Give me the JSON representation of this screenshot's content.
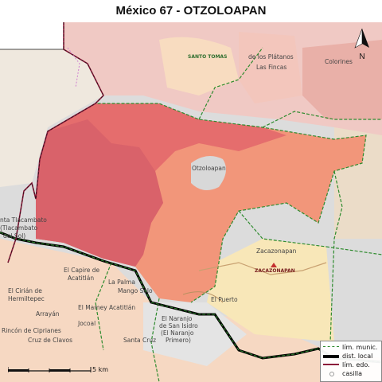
{
  "title": "México 67 - OTZOLOAPAN",
  "map": {
    "places": [
      {
        "id": "santo-tomas",
        "text": "SANTO TOMAS",
        "style": "g"
      },
      {
        "id": "los-platanos",
        "text": "de los Plátanos",
        "style": "n"
      },
      {
        "id": "las-fincas",
        "text": "Las Fincas",
        "style": "n"
      },
      {
        "id": "colorines",
        "text": "Colorines",
        "style": "n"
      },
      {
        "id": "otzoloapan",
        "text": "Otzoloapan",
        "style": "n"
      },
      {
        "id": "tinoco-1",
        "text": "nta Tlacambato",
        "style": "n"
      },
      {
        "id": "tinoco-2",
        "text": "(Tlacambato",
        "style": "n"
      },
      {
        "id": "tinoco-3",
        "text": "del Sol)",
        "style": "n"
      },
      {
        "id": "zacazonapan",
        "text": "Zacazonapan",
        "style": "n"
      },
      {
        "id": "zacazonapan-cap",
        "text": "ZACAZONAPAN",
        "style": "r"
      },
      {
        "id": "capire",
        "text": "El Capire de",
        "style": "n"
      },
      {
        "id": "capire-2",
        "text": "Acatitlán",
        "style": "n"
      },
      {
        "id": "la-palma",
        "text": "La Palma",
        "style": "n"
      },
      {
        "id": "mango-solo",
        "text": "Mango Solo",
        "style": "n"
      },
      {
        "id": "cirian",
        "text": "El Cirián de",
        "style": "n"
      },
      {
        "id": "cirian-2",
        "text": "Hermiltepec",
        "style": "n"
      },
      {
        "id": "arrayan",
        "text": "Arrayán",
        "style": "n"
      },
      {
        "id": "mamey",
        "text": "El Mamey Acatitlán",
        "style": "n"
      },
      {
        "id": "el-puerto",
        "text": "El Puerto",
        "style": "n"
      },
      {
        "id": "jocoal",
        "text": "Jocoal",
        "style": "n"
      },
      {
        "id": "naranjo",
        "text": "El Naranjo",
        "style": "n"
      },
      {
        "id": "naranjo-2",
        "text": "de San Isidro",
        "style": "n"
      },
      {
        "id": "naranjo-3",
        "text": "(El Naranjo",
        "style": "n"
      },
      {
        "id": "naranjo-4",
        "text": "Primero)",
        "style": "n"
      },
      {
        "id": "rincon",
        "text": "Rincón de Ciprianes",
        "style": "n"
      },
      {
        "id": "cruz-clavos",
        "text": "Cruz de Clavos",
        "style": "n"
      },
      {
        "id": "santa-cruz",
        "text": "Santa Cruz",
        "style": "n"
      }
    ]
  },
  "legend": {
    "items": [
      {
        "label": "lím. munic.",
        "color": "#2e8b2e"
      },
      {
        "label": "dist. local",
        "color": "#000000"
      },
      {
        "label": "lím. edo.",
        "color": "#8b1a3a"
      },
      {
        "label": "casilla",
        "color": "#999999"
      }
    ]
  },
  "scale": {
    "label": "5 km"
  },
  "north": {
    "label": "N"
  },
  "colors": {
    "district_dark": "#d9626a",
    "district_mid": "#e56d6d",
    "district_light": "#f2967a",
    "pink_bg": "#f0c9c4",
    "peach_bg": "#f8dcc0",
    "grey_bg": "#dcdcdc",
    "yellow_bg": "#f8e7b8"
  }
}
